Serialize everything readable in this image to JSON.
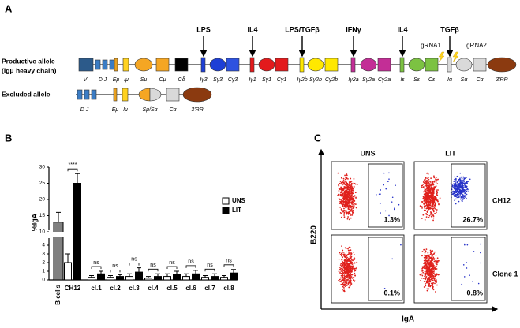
{
  "panel_labels": [
    "A",
    "B",
    "C"
  ],
  "panel_a": {
    "stimuli": [
      "LPS",
      "IL4",
      "LPS/TGFβ",
      "IFNγ",
      "IL4",
      "TGFβ"
    ],
    "guides": [
      "gRNA1",
      "gRNA2"
    ],
    "productive_allele": {
      "title": "Productive allele",
      "subtitle": "(Igμ heavy chain)",
      "segments": [
        "V",
        "D J",
        "Eμ",
        "Iμ",
        "Sμ",
        "Cμ",
        "Cδ",
        "Iγ3",
        "Sγ3",
        "Cγ3",
        "Iγ1",
        "Sγ1",
        "Cγ1",
        "Iγ2b",
        "Sγ2b",
        "Cγ2b",
        "Iγ2a",
        "Sγ2a",
        "Cγ2a",
        "Iε",
        "Sε",
        "Cε",
        "Iα",
        "Sα",
        "Cα",
        "3'RR"
      ]
    },
    "excluded_allele": {
      "title": "Excluded allele",
      "segments": [
        "D J",
        "Eμ",
        "Iμ",
        "Sμ/Sα",
        "Cα",
        "3'RR"
      ]
    }
  },
  "chart_data": {
    "type": "bar",
    "y_label": "%IgA",
    "categories": [
      "B cells",
      "CH12",
      "cl.1",
      "cl.2",
      "cl.3",
      "cl.4",
      "cl.5",
      "cl.6",
      "cl.7",
      "cl.8"
    ],
    "series": [
      {
        "color": "#808080",
        "values": [
          13,
          null,
          null,
          null,
          null,
          null,
          null,
          null,
          null,
          null
        ],
        "errors": [
          3,
          null,
          null,
          null,
          null,
          null,
          null,
          null,
          null,
          null
        ]
      },
      {
        "name": "UNS",
        "color": "#ffffff",
        "values": [
          null,
          2,
          0.3,
          0.3,
          0.4,
          0.2,
          0.4,
          0.4,
          0.3,
          0.3
        ],
        "errors": [
          null,
          1,
          0.2,
          0.2,
          0.3,
          0.2,
          0.3,
          0.3,
          0.2,
          0.2
        ]
      },
      {
        "name": "LIT",
        "color": "#000000",
        "values": [
          null,
          25,
          0.7,
          0.4,
          0.9,
          0.4,
          0.6,
          0.7,
          0.4,
          0.8
        ],
        "errors": [
          null,
          3,
          0.3,
          0.2,
          0.5,
          0.3,
          0.4,
          0.4,
          0.3,
          0.4
        ]
      }
    ],
    "significance": [
      null,
      "****",
      "ns",
      "ns",
      "ns",
      "ns",
      "ns",
      "ns",
      "ns",
      "ns"
    ],
    "ylim": [
      0,
      30
    ],
    "yticks": [
      0,
      1,
      2,
      3,
      4,
      10,
      15,
      20,
      25,
      30
    ],
    "axis_break": [
      5,
      10
    ],
    "legend": "right"
  },
  "panel_c": {
    "columns": [
      "UNS",
      "LIT"
    ],
    "rows": [
      "CH12",
      "Clone 1"
    ],
    "x_label": "IgA",
    "y_label": "B220",
    "percentages": [
      [
        "1.3%",
        "26.7%"
      ],
      [
        "0.1%",
        "0.8%"
      ]
    ]
  }
}
